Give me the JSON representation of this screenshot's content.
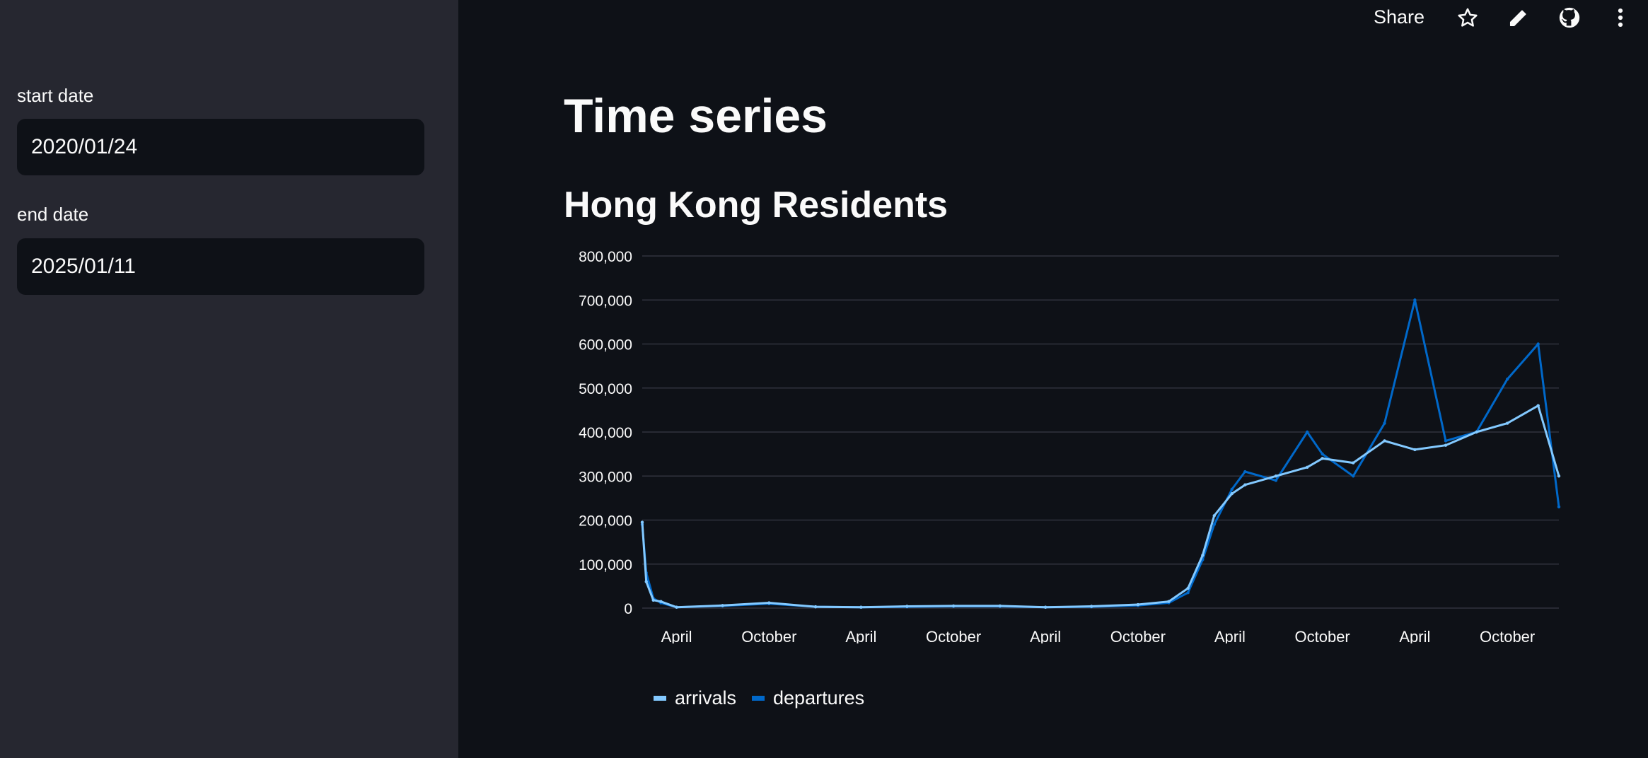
{
  "sidebar": {
    "start_label": "start date",
    "start_value": "2020/01/24",
    "end_label": "end date",
    "end_value": "2025/01/11"
  },
  "toolbar": {
    "share_label": "Share",
    "icons": [
      "star-icon",
      "pencil-icon",
      "github-icon",
      "kebab-menu-icon"
    ]
  },
  "page": {
    "title": "Time series",
    "subtitle": "Hong Kong Residents"
  },
  "colors": {
    "arrivals": "#83c9ff",
    "departures": "#0068c9"
  },
  "chart_data": {
    "type": "line",
    "ylim": [
      0,
      800000
    ],
    "y_ticks": [
      0,
      100000,
      200000,
      300000,
      400000,
      500000,
      600000,
      700000,
      800000
    ],
    "y_tick_labels": [
      "0",
      "100,000",
      "200,000",
      "300,000",
      "400,000",
      "500,000",
      "600,000",
      "700,000",
      "800,000"
    ],
    "x_range": [
      "2020-01-24",
      "2025-01-11"
    ],
    "x_ticks": [
      "2020-04-01",
      "2020-10-01",
      "2021-04-01",
      "2021-10-01",
      "2022-04-01",
      "2022-10-01",
      "2023-04-01",
      "2023-10-01",
      "2024-04-01",
      "2024-10-01"
    ],
    "x_tick_labels": [
      "April",
      "October",
      "April",
      "October",
      "April",
      "October",
      "April",
      "October",
      "April",
      "October"
    ],
    "grid": true,
    "legend": "bottom-left",
    "series": [
      {
        "name": "arrivals",
        "x": [
          "2020-01-24",
          "2020-02-01",
          "2020-02-15",
          "2020-03-01",
          "2020-04-01",
          "2020-07-01",
          "2020-10-01",
          "2021-01-01",
          "2021-04-01",
          "2021-07-01",
          "2021-10-01",
          "2022-01-01",
          "2022-04-01",
          "2022-07-01",
          "2022-10-01",
          "2022-12-01",
          "2023-01-08",
          "2023-02-06",
          "2023-03-01",
          "2023-04-05",
          "2023-05-01",
          "2023-07-01",
          "2023-09-01",
          "2023-10-01",
          "2023-12-01",
          "2024-02-01",
          "2024-04-01",
          "2024-06-01",
          "2024-08-01",
          "2024-10-01",
          "2024-12-01",
          "2025-01-11"
        ],
        "values": [
          195000,
          60000,
          18000,
          15000,
          2000,
          6000,
          12000,
          3000,
          2000,
          4000,
          5000,
          5000,
          2000,
          4000,
          8000,
          15000,
          45000,
          120000,
          210000,
          260000,
          280000,
          300000,
          320000,
          340000,
          330000,
          380000,
          360000,
          370000,
          400000,
          420000,
          460000,
          300000
        ]
      },
      {
        "name": "departures",
        "x": [
          "2020-01-24",
          "2020-02-01",
          "2020-02-15",
          "2020-03-01",
          "2020-04-01",
          "2020-07-01",
          "2020-10-01",
          "2021-01-01",
          "2021-04-01",
          "2021-07-01",
          "2021-10-01",
          "2022-01-01",
          "2022-04-01",
          "2022-07-01",
          "2022-10-01",
          "2022-12-01",
          "2023-01-08",
          "2023-02-06",
          "2023-03-01",
          "2023-04-05",
          "2023-05-01",
          "2023-07-01",
          "2023-09-01",
          "2023-10-01",
          "2023-12-01",
          "2024-02-01",
          "2024-04-01",
          "2024-06-01",
          "2024-08-01",
          "2024-10-01",
          "2024-12-01",
          "2025-01-11"
        ],
        "values": [
          190000,
          80000,
          22000,
          12000,
          2000,
          5000,
          10000,
          3000,
          2000,
          3000,
          4000,
          4000,
          2000,
          3000,
          6000,
          12000,
          35000,
          110000,
          190000,
          270000,
          310000,
          290000,
          400000,
          350000,
          300000,
          420000,
          700000,
          380000,
          400000,
          520000,
          600000,
          230000
        ]
      }
    ]
  }
}
